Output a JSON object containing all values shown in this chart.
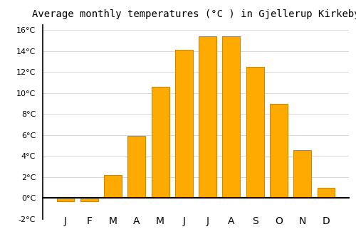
{
  "title": "Average monthly temperatures (°C ) in Gjellerup Kirkeby",
  "months": [
    "J",
    "F",
    "M",
    "A",
    "M",
    "J",
    "J",
    "A",
    "S",
    "O",
    "N",
    "D"
  ],
  "temperatures": [
    -0.3,
    -0.3,
    2.2,
    5.9,
    10.6,
    14.1,
    15.4,
    15.4,
    12.5,
    9.0,
    4.6,
    1.0
  ],
  "bar_color": "#FFAA00",
  "bar_edge_color": "#CC8800",
  "background_color": "#ffffff",
  "grid_color": "#d8d8d8",
  "ylim": [
    -2,
    16.5
  ],
  "yticks": [
    -2,
    0,
    2,
    4,
    6,
    8,
    10,
    12,
    14,
    16
  ],
  "title_fontsize": 10,
  "tick_fontsize": 8,
  "zero_line_color": "#000000",
  "spine_color": "#000000",
  "bar_width": 0.75
}
